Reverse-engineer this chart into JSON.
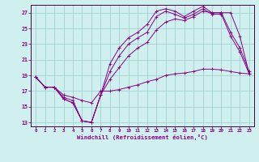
{
  "xlabel": "Windchill (Refroidissement éolien,°C)",
  "bg_color": "#d0f0f0",
  "line_color": "#880088",
  "grid_color": "#99cccc",
  "axis_color": "#440044",
  "xlim": [
    -0.5,
    23.5
  ],
  "ylim": [
    12.5,
    28.0
  ],
  "yticks": [
    13,
    15,
    17,
    19,
    21,
    23,
    25,
    27
  ],
  "xticks": [
    0,
    1,
    2,
    3,
    4,
    5,
    6,
    7,
    8,
    9,
    10,
    11,
    12,
    13,
    14,
    15,
    16,
    17,
    18,
    19,
    20,
    21,
    22,
    23
  ],
  "hours": [
    0,
    1,
    2,
    3,
    4,
    5,
    6,
    7,
    8,
    9,
    10,
    11,
    12,
    13,
    14,
    15,
    16,
    17,
    18,
    19,
    20,
    21,
    22,
    23
  ],
  "line1": [
    18.8,
    17.5,
    17.5,
    16.0,
    15.5,
    13.2,
    13.0,
    16.5,
    20.5,
    22.5,
    23.8,
    24.5,
    25.5,
    27.2,
    27.5,
    27.2,
    26.5,
    27.2,
    27.8,
    27.0,
    27.0,
    24.5,
    22.5,
    19.5
  ],
  "line2": [
    18.8,
    17.5,
    17.5,
    16.0,
    15.5,
    13.2,
    13.0,
    16.5,
    19.5,
    21.5,
    23.0,
    23.8,
    24.5,
    26.5,
    27.2,
    26.8,
    26.3,
    26.8,
    27.5,
    26.8,
    26.8,
    24.0,
    22.0,
    19.2
  ],
  "line3": [
    18.8,
    17.5,
    17.5,
    16.2,
    15.8,
    13.2,
    13.0,
    16.5,
    18.5,
    20.0,
    21.5,
    22.5,
    23.2,
    24.8,
    25.8,
    26.2,
    26.0,
    26.5,
    27.2,
    27.0,
    27.0,
    27.0,
    24.0,
    19.2
  ],
  "line4": [
    18.8,
    17.5,
    17.5,
    16.5,
    16.2,
    15.8,
    15.5,
    17.0,
    17.0,
    17.2,
    17.5,
    17.8,
    18.2,
    18.5,
    19.0,
    19.2,
    19.3,
    19.5,
    19.8,
    19.8,
    19.7,
    19.5,
    19.3,
    19.2
  ]
}
